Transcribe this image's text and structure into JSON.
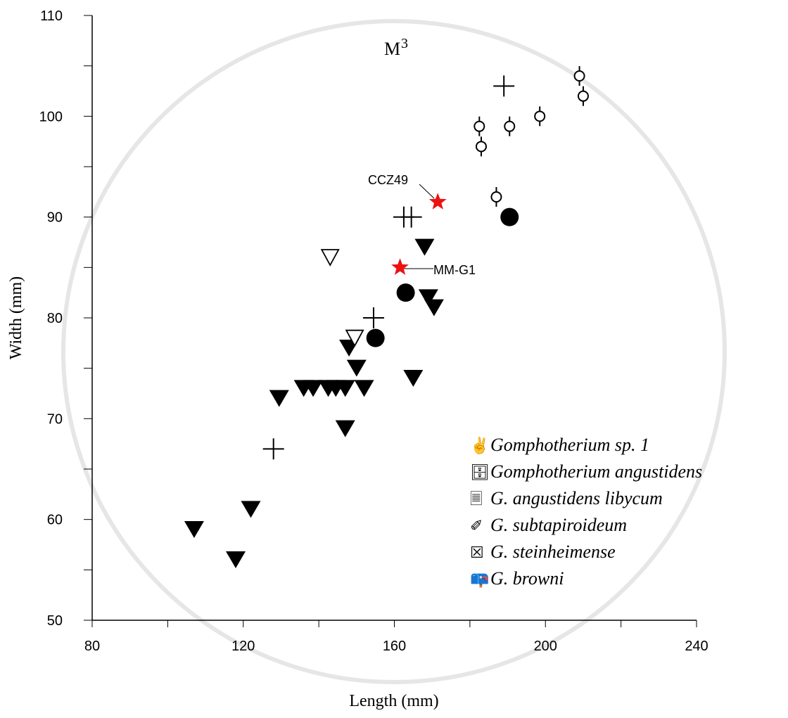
{
  "chart_data": {
    "type": "scatter",
    "title": "M",
    "title_sup": "3",
    "x_label": "Length (mm)",
    "y_label": "Width (mm)",
    "xlim": [
      80,
      240
    ],
    "xticks": [
      80,
      120,
      160,
      200,
      240
    ],
    "xminor": [
      100,
      140,
      180,
      220
    ],
    "ylim": [
      50,
      110
    ],
    "yticks": [
      50,
      60,
      70,
      80,
      90,
      100,
      110
    ],
    "yminor": [
      55,
      65,
      75,
      85,
      95,
      105
    ],
    "annotations": [
      "CCZ49",
      "MM-G1"
    ],
    "series": [
      {
        "name": "Gomphotherium sp. 1",
        "legend_symbol": "✌",
        "marker": "star",
        "color": "#ee1111",
        "x": [
          171.5,
          161.5
        ],
        "values": [
          91.5,
          85
        ]
      },
      {
        "name": "Gomphotherium angustidens",
        "legend_symbol": "🗄",
        "marker": "filled-triangle",
        "color": "#000000",
        "x": [
          168,
          169,
          170.5,
          165,
          148,
          150,
          129.5,
          136,
          138.5,
          142.5,
          144.5,
          147,
          152,
          147,
          122,
          107,
          118
        ],
        "values": [
          87,
          82,
          81,
          74,
          77,
          75,
          72,
          73,
          73,
          73,
          73,
          73,
          73,
          69,
          61,
          59,
          56
        ]
      },
      {
        "name": "G. angustidens libycum",
        "legend_symbol": "🗏",
        "marker": "open-triangle",
        "color": "#000000",
        "x": [
          143,
          149.5
        ],
        "values": [
          86,
          78
        ]
      },
      {
        "name": "G. subtapiroideum",
        "legend_symbol": "✐",
        "marker": "plus",
        "color": "#000000",
        "x": [
          189,
          162.5,
          164.5,
          154.5,
          128
        ],
        "values": [
          103,
          90,
          90,
          80,
          67
        ]
      },
      {
        "name": "G. steinheimense",
        "legend_symbol": "☒",
        "marker": "filled-circle",
        "color": "#000000",
        "x": [
          190.5,
          163,
          155
        ],
        "values": [
          90,
          82.5,
          78
        ]
      },
      {
        "name": "G. browni",
        "legend_symbol": "📪",
        "marker": "open-circle-bar",
        "color": "#000000",
        "x": [
          182.5,
          183,
          190.5,
          198.5,
          209,
          210,
          187
        ],
        "values": [
          99,
          97,
          99,
          100,
          104,
          102,
          92
        ]
      }
    ]
  }
}
